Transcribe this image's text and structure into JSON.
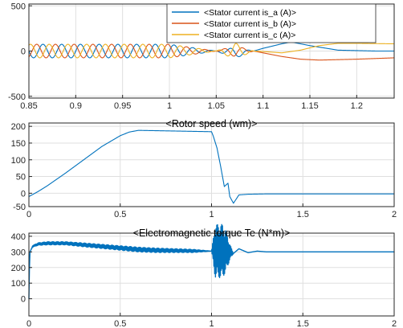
{
  "colors": {
    "series_a": "#0072BD",
    "series_b": "#D95319",
    "series_c": "#EDB120",
    "single": "#0072BD"
  },
  "chart_data": [
    {
      "type": "line",
      "title": "",
      "xlabel": "",
      "ylabel": "",
      "xlim": [
        0.85,
        1.24
      ],
      "ylim": [
        -520,
        520
      ],
      "xticks": [
        "0.85",
        "0.9",
        "0.95",
        "1",
        "1.05",
        "1.1",
        "1.15",
        "1.2"
      ],
      "xtick_values": [
        0.85,
        0.9,
        0.95,
        1.0,
        1.05,
        1.1,
        1.15,
        1.2
      ],
      "yticks": [
        "-500",
        "0",
        "500"
      ],
      "ytick_values": [
        -500,
        0,
        500
      ],
      "grid": true,
      "legend_position": "top-right",
      "series": [
        {
          "name": "<Stator current is_a (A)>",
          "x": [
            0.85,
            1.0,
            1.03,
            1.05,
            1.07,
            1.09,
            1.1,
            1.12,
            1.13,
            1.15,
            1.18,
            1.22,
            1.24
          ],
          "y": [
            0,
            0,
            0,
            0,
            -20,
            0,
            30,
            80,
            100,
            60,
            10,
            0,
            0
          ],
          "amplitude": [
            75,
            75,
            30,
            0,
            60,
            0,
            0,
            0,
            0,
            0,
            0,
            0,
            0
          ]
        },
        {
          "name": "<Stator current is_b (A)>",
          "x": [
            0.85,
            1.0,
            1.03,
            1.05,
            1.07,
            1.09,
            1.1,
            1.12,
            1.14,
            1.16,
            1.2,
            1.24
          ],
          "y": [
            0,
            0,
            0,
            0,
            0,
            0,
            -20,
            -60,
            -90,
            -100,
            -90,
            -75
          ],
          "amplitude": [
            75,
            75,
            30,
            0,
            60,
            0,
            0,
            0,
            0,
            0,
            0,
            0
          ]
        },
        {
          "name": "<Stator current is_c (A)>",
          "x": [
            0.85,
            1.0,
            1.03,
            1.05,
            1.07,
            1.09,
            1.1,
            1.12,
            1.14,
            1.16,
            1.18,
            1.2,
            1.24
          ],
          "y": [
            0,
            0,
            0,
            0,
            0,
            0,
            -5,
            -20,
            10,
            60,
            85,
            85,
            80
          ],
          "amplitude": [
            75,
            75,
            30,
            0,
            90,
            0,
            0,
            0,
            0,
            0,
            0,
            0,
            0
          ]
        }
      ]
    },
    {
      "type": "line",
      "title": "<Rotor speed (wm)>",
      "xlabel": "",
      "ylabel": "",
      "xlim": [
        0,
        2
      ],
      "ylim": [
        -40,
        210
      ],
      "xticks": [
        "0",
        "0.5",
        "1",
        "1.5",
        "2"
      ],
      "xtick_values": [
        0,
        0.5,
        1,
        1.5,
        2
      ],
      "yticks": [
        "-50",
        "0",
        "50",
        "100",
        "150",
        "200"
      ],
      "ytick_values": [
        -50,
        0,
        50,
        100,
        150,
        200
      ],
      "grid": true,
      "series": [
        {
          "name": "",
          "x": [
            0,
            0.05,
            0.1,
            0.2,
            0.3,
            0.4,
            0.5,
            0.55,
            0.6,
            0.7,
            0.8,
            0.9,
            1.0,
            1.01,
            1.03,
            1.05,
            1.07,
            1.09,
            1.1,
            1.12,
            1.15,
            1.2,
            1.3,
            1.5,
            2.0
          ],
          "y": [
            -10,
            5,
            22,
            60,
            100,
            140,
            172,
            183,
            188,
            187,
            186,
            185,
            184,
            170,
            135,
            80,
            20,
            30,
            -10,
            -30,
            -5,
            -3,
            -2,
            -2,
            -2
          ]
        }
      ]
    },
    {
      "type": "line",
      "title": "<Electromagnetic torque Te (N*m)>",
      "xlabel": "",
      "ylabel": "",
      "xlim": [
        0,
        2
      ],
      "ylim": [
        -110,
        420
      ],
      "xticks": [
        "0",
        "0.5",
        "1",
        "1.5",
        "2"
      ],
      "xtick_values": [
        0,
        0.5,
        1,
        1.5,
        2
      ],
      "yticks": [
        "0",
        "100",
        "200",
        "300",
        "400"
      ],
      "ytick_values": [
        0,
        100,
        200,
        300,
        400
      ],
      "grid": true,
      "series": [
        {
          "name": "",
          "x": [
            0,
            0.003,
            0.006,
            0.02,
            0.05,
            0.1,
            0.2,
            0.3,
            0.4,
            0.5,
            0.6,
            0.7,
            0.8,
            0.9,
            1.0,
            1.02,
            1.04,
            1.06,
            1.08,
            1.1,
            1.12,
            1.15,
            1.2,
            1.25,
            1.3,
            1.4,
            1.5,
            2.0
          ],
          "y": [
            0,
            200,
            300,
            335,
            350,
            355,
            355,
            345,
            335,
            325,
            315,
            310,
            308,
            306,
            305,
            305,
            305,
            305,
            305,
            300,
            290,
            320,
            295,
            305,
            300,
            300,
            300,
            300
          ],
          "amplitude": [
            0,
            0,
            0,
            5,
            8,
            10,
            10,
            12,
            13,
            14,
            15,
            14,
            12,
            10,
            0,
            170,
            170,
            170,
            130,
            50,
            0,
            0,
            0,
            0,
            0,
            0,
            0,
            0
          ]
        }
      ]
    }
  ]
}
